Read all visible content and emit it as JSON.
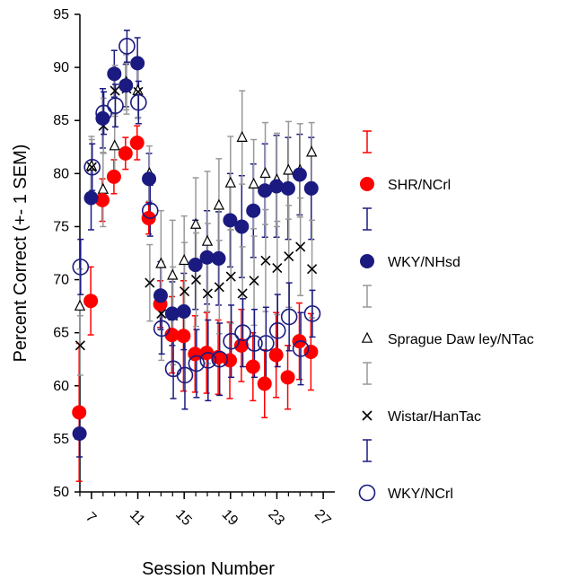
{
  "chart_data": {
    "type": "scatter",
    "title": "",
    "xlabel": "Session Number",
    "ylabel": "Percent Correct (+- 1 SEM)",
    "xlim": [
      6,
      28
    ],
    "ylim": [
      50,
      95
    ],
    "xticks": [
      7,
      11,
      15,
      19,
      23,
      27
    ],
    "yticks": [
      50,
      55,
      60,
      65,
      70,
      75,
      80,
      85,
      90,
      95
    ],
    "grid": false,
    "legend_position": "right",
    "series": [
      {
        "name": "SHR/NCrl",
        "marker": "filled-circle",
        "color": "#ff0000",
        "errorbar_color": "#ff0000",
        "x": [
          6,
          7,
          8,
          9,
          10,
          11,
          12,
          13,
          14,
          15,
          16,
          17,
          18,
          19,
          20,
          21,
          22,
          23,
          24,
          25,
          26
        ],
        "y": [
          57.5,
          68.0,
          77.5,
          79.7,
          81.9,
          82.9,
          75.8,
          67.7,
          64.8,
          64.7,
          63.0,
          63.1,
          62.7,
          62.4,
          63.8,
          61.8,
          60.2,
          62.9,
          60.8,
          64.2,
          63.2
        ],
        "err": [
          6.5,
          3.2,
          2.0,
          1.6,
          1.5,
          1.6,
          1.5,
          2.2,
          3.6,
          5.2,
          3.6,
          3.8,
          3.5,
          3.6,
          3.4,
          3.2,
          3.2,
          4.0,
          3.0,
          3.6,
          3.6
        ]
      },
      {
        "name": "WKY/NHsd",
        "marker": "filled-circle",
        "color": "#1a1a80",
        "errorbar_color": "#1a1a80",
        "x": [
          6,
          7,
          8,
          9,
          10,
          11,
          12,
          13,
          14,
          15,
          16,
          17,
          18,
          19,
          20,
          21,
          22,
          23,
          24,
          25,
          26
        ],
        "y": [
          55.5,
          77.7,
          85.2,
          89.4,
          88.3,
          90.4,
          79.5,
          68.5,
          66.8,
          67.0,
          71.4,
          72.1,
          72.0,
          75.6,
          75.0,
          76.5,
          78.4,
          78.8,
          78.6,
          79.9,
          78.6
        ],
        "err": [
          2.2,
          3.0,
          2.8,
          2.2,
          2.0,
          2.4,
          2.4,
          3.2,
          3.0,
          3.6,
          4.2,
          4.4,
          4.4,
          4.4,
          4.8,
          4.4,
          4.4,
          4.8,
          4.8,
          3.8,
          4.8
        ]
      },
      {
        "name": "Sprague Daw ley/NTac",
        "marker": "open-triangle",
        "color": "#000000",
        "errorbar_color": "#999999",
        "x": [
          6,
          7,
          8,
          9,
          10,
          11,
          12,
          13,
          14,
          15,
          16,
          17,
          18,
          19,
          20,
          21,
          22,
          23,
          24,
          25,
          26
        ],
        "y": [
          67.5,
          80.7,
          78.5,
          82.6,
          88.6,
          87.8,
          80.0,
          71.5,
          70.4,
          71.8,
          75.2,
          73.6,
          77.0,
          79.1,
          83.4,
          79.0,
          80.0,
          79.4,
          80.3,
          80.3,
          82.0
        ],
        "err": [
          3.5,
          2.8,
          3.5,
          3.0,
          2.6,
          2.6,
          2.6,
          5.0,
          5.2,
          4.2,
          4.4,
          6.6,
          4.4,
          4.4,
          4.4,
          4.2,
          4.8,
          4.4,
          4.6,
          4.4,
          2.8
        ]
      },
      {
        "name": "Wistar/HanTac",
        "marker": "x",
        "color": "#000000",
        "errorbar_color": "#999999",
        "x": [
          6,
          7,
          8,
          9,
          10,
          11,
          12,
          13,
          14,
          15,
          16,
          17,
          18,
          19,
          20,
          21,
          22,
          23,
          24,
          25,
          26
        ],
        "y": [
          63.8,
          80.6,
          84.5,
          87.8,
          88.0,
          87.7,
          69.7,
          66.8,
          66.6,
          68.9,
          70.0,
          68.7,
          69.3,
          70.3,
          68.7,
          69.9,
          71.8,
          71.1,
          72.2,
          73.1,
          71.0
        ],
        "err": [
          2.8,
          2.6,
          2.6,
          2.4,
          2.4,
          2.4,
          3.6,
          4.4,
          4.6,
          4.6,
          4.4,
          6.6,
          4.4,
          4.4,
          4.4,
          4.2,
          4.8,
          4.4,
          4.8,
          4.6,
          4.6
        ]
      },
      {
        "name": "WKY/NCrl",
        "marker": "open-circle",
        "color": "#1a1a80",
        "errorbar_color": "#1a1a80",
        "x": [
          6,
          7,
          8,
          9,
          10,
          11,
          12,
          13,
          14,
          15,
          16,
          17,
          18,
          19,
          20,
          21,
          22,
          23,
          24,
          25,
          26
        ],
        "y": [
          71.2,
          80.6,
          85.7,
          86.4,
          92.0,
          86.7,
          76.5,
          65.4,
          61.6,
          61.0,
          62.1,
          62.4,
          62.5,
          64.2,
          65.0,
          64.0,
          64.0,
          65.2,
          66.5,
          63.5,
          66.8
        ],
        "err": [
          2.6,
          2.2,
          2.0,
          2.0,
          1.5,
          2.0,
          2.4,
          2.4,
          2.8,
          3.2,
          3.2,
          3.8,
          3.4,
          3.4,
          3.2,
          3.2,
          3.4,
          3.4,
          3.2,
          3.4,
          2.2
        ]
      }
    ]
  }
}
